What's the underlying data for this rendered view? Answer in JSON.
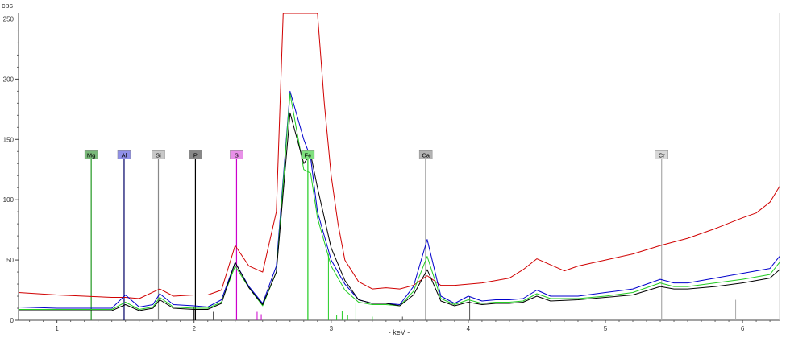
{
  "chart_data": {
    "type": "line",
    "ylabel": "cps",
    "xlabel": "- keV -",
    "xlim": [
      0.72,
      6.27
    ],
    "ylim": [
      0,
      255
    ],
    "x_ticks": [
      1,
      2,
      3,
      4,
      5,
      6
    ],
    "y_ticks": [
      0,
      50,
      100,
      150,
      200,
      250
    ],
    "grid": false,
    "series": [
      {
        "color": "#d00000",
        "points": [
          [
            0.72,
            23
          ],
          [
            1.0,
            21
          ],
          [
            1.2,
            20
          ],
          [
            1.4,
            19
          ],
          [
            1.5,
            19
          ],
          [
            1.6,
            18
          ],
          [
            1.75,
            26
          ],
          [
            1.85,
            20
          ],
          [
            2.0,
            21
          ],
          [
            2.1,
            21
          ],
          [
            2.2,
            25
          ],
          [
            2.3,
            62
          ],
          [
            2.4,
            45
          ],
          [
            2.5,
            40
          ],
          [
            2.6,
            90
          ],
          [
            2.65,
            255
          ],
          [
            2.9,
            255
          ],
          [
            2.95,
            180
          ],
          [
            3.0,
            120
          ],
          [
            3.05,
            80
          ],
          [
            3.1,
            50
          ],
          [
            3.2,
            32
          ],
          [
            3.3,
            26
          ],
          [
            3.4,
            27
          ],
          [
            3.5,
            26
          ],
          [
            3.6,
            29
          ],
          [
            3.7,
            37
          ],
          [
            3.8,
            29
          ],
          [
            3.9,
            29
          ],
          [
            4.0,
            30
          ],
          [
            4.1,
            31
          ],
          [
            4.2,
            33
          ],
          [
            4.3,
            35
          ],
          [
            4.4,
            42
          ],
          [
            4.5,
            51
          ],
          [
            4.6,
            46
          ],
          [
            4.7,
            41
          ],
          [
            4.8,
            45
          ],
          [
            5.0,
            50
          ],
          [
            5.2,
            55
          ],
          [
            5.4,
            62
          ],
          [
            5.6,
            68
          ],
          [
            5.8,
            76
          ],
          [
            6.0,
            85
          ],
          [
            6.1,
            89
          ],
          [
            6.2,
            98
          ],
          [
            6.27,
            111
          ]
        ]
      },
      {
        "color": "#0000cc",
        "points": [
          [
            0.72,
            11
          ],
          [
            1.0,
            10
          ],
          [
            1.2,
            10
          ],
          [
            1.4,
            10
          ],
          [
            1.5,
            21
          ],
          [
            1.6,
            11
          ],
          [
            1.7,
            13
          ],
          [
            1.75,
            22
          ],
          [
            1.85,
            13
          ],
          [
            2.0,
            12
          ],
          [
            2.1,
            11
          ],
          [
            2.2,
            17
          ],
          [
            2.3,
            48
          ],
          [
            2.4,
            28
          ],
          [
            2.5,
            14
          ],
          [
            2.6,
            45
          ],
          [
            2.7,
            190
          ],
          [
            2.8,
            150
          ],
          [
            2.85,
            135
          ],
          [
            2.9,
            90
          ],
          [
            3.0,
            50
          ],
          [
            3.1,
            30
          ],
          [
            3.2,
            17
          ],
          [
            3.3,
            14
          ],
          [
            3.4,
            14
          ],
          [
            3.5,
            13
          ],
          [
            3.6,
            28
          ],
          [
            3.7,
            67
          ],
          [
            3.8,
            20
          ],
          [
            3.9,
            14
          ],
          [
            4.0,
            20
          ],
          [
            4.1,
            16
          ],
          [
            4.2,
            17
          ],
          [
            4.3,
            17
          ],
          [
            4.4,
            18
          ],
          [
            4.5,
            25
          ],
          [
            4.6,
            20
          ],
          [
            4.8,
            20
          ],
          [
            5.0,
            23
          ],
          [
            5.2,
            26
          ],
          [
            5.4,
            34
          ],
          [
            5.5,
            31
          ],
          [
            5.6,
            31
          ],
          [
            5.8,
            35
          ],
          [
            6.0,
            39
          ],
          [
            6.2,
            43
          ],
          [
            6.27,
            53
          ]
        ]
      },
      {
        "color": "#22cc22",
        "points": [
          [
            0.72,
            9
          ],
          [
            1.0,
            9
          ],
          [
            1.2,
            9
          ],
          [
            1.4,
            9
          ],
          [
            1.5,
            15
          ],
          [
            1.6,
            9
          ],
          [
            1.7,
            11
          ],
          [
            1.75,
            19
          ],
          [
            1.85,
            11
          ],
          [
            2.0,
            10
          ],
          [
            2.1,
            10
          ],
          [
            2.2,
            15
          ],
          [
            2.3,
            45
          ],
          [
            2.4,
            27
          ],
          [
            2.5,
            12
          ],
          [
            2.6,
            40
          ],
          [
            2.7,
            188
          ],
          [
            2.8,
            125
          ],
          [
            2.85,
            122
          ],
          [
            2.9,
            85
          ],
          [
            3.0,
            45
          ],
          [
            3.1,
            25
          ],
          [
            3.2,
            15
          ],
          [
            3.3,
            13
          ],
          [
            3.4,
            13
          ],
          [
            3.5,
            12
          ],
          [
            3.6,
            24
          ],
          [
            3.7,
            53
          ],
          [
            3.8,
            18
          ],
          [
            3.9,
            13
          ],
          [
            4.0,
            17
          ],
          [
            4.1,
            14
          ],
          [
            4.2,
            15
          ],
          [
            4.3,
            15
          ],
          [
            4.4,
            16
          ],
          [
            4.5,
            22
          ],
          [
            4.6,
            18
          ],
          [
            4.8,
            18
          ],
          [
            5.0,
            20
          ],
          [
            5.2,
            23
          ],
          [
            5.4,
            31
          ],
          [
            5.5,
            28
          ],
          [
            5.6,
            28
          ],
          [
            5.8,
            31
          ],
          [
            6.0,
            34
          ],
          [
            6.2,
            38
          ],
          [
            6.27,
            48
          ]
        ]
      },
      {
        "color": "#000000",
        "points": [
          [
            0.72,
            8
          ],
          [
            1.0,
            8
          ],
          [
            1.2,
            8
          ],
          [
            1.4,
            8
          ],
          [
            1.5,
            13
          ],
          [
            1.6,
            8
          ],
          [
            1.7,
            10
          ],
          [
            1.75,
            17
          ],
          [
            1.85,
            10
          ],
          [
            2.0,
            9
          ],
          [
            2.1,
            9
          ],
          [
            2.2,
            14
          ],
          [
            2.3,
            48
          ],
          [
            2.4,
            27
          ],
          [
            2.5,
            13
          ],
          [
            2.6,
            40
          ],
          [
            2.7,
            172
          ],
          [
            2.8,
            130
          ],
          [
            2.85,
            138
          ],
          [
            2.9,
            110
          ],
          [
            3.0,
            60
          ],
          [
            3.1,
            33
          ],
          [
            3.2,
            17
          ],
          [
            3.3,
            14
          ],
          [
            3.4,
            14
          ],
          [
            3.5,
            12
          ],
          [
            3.6,
            21
          ],
          [
            3.7,
            42
          ],
          [
            3.8,
            16
          ],
          [
            3.9,
            12
          ],
          [
            4.0,
            15
          ],
          [
            4.1,
            13
          ],
          [
            4.2,
            14
          ],
          [
            4.3,
            14
          ],
          [
            4.4,
            15
          ],
          [
            4.5,
            20
          ],
          [
            4.6,
            16
          ],
          [
            4.8,
            17
          ],
          [
            5.0,
            19
          ],
          [
            5.2,
            21
          ],
          [
            5.4,
            28
          ],
          [
            5.5,
            26
          ],
          [
            5.6,
            26
          ],
          [
            5.8,
            28
          ],
          [
            6.0,
            31
          ],
          [
            6.2,
            35
          ],
          [
            6.27,
            42
          ]
        ]
      }
    ],
    "element_markers": [
      {
        "label": "Mg",
        "kev": 1.25,
        "color": "#229922",
        "label_bg": "#7ab87a"
      },
      {
        "label": "Al",
        "kev": 1.49,
        "color": "#000066",
        "label_bg": "#9090e8"
      },
      {
        "label": "Si",
        "kev": 1.74,
        "color": "#888888",
        "label_bg": "#c8c8c8"
      },
      {
        "label": "P",
        "kev": 2.01,
        "color": "#000000",
        "label_bg": "#888888"
      },
      {
        "label": "S",
        "kev": 2.31,
        "color": "#cc00cc",
        "label_bg": "#e890e8"
      },
      {
        "label": "Fe",
        "kev": 2.83,
        "color": "#22cc22",
        "label_bg": "#7ee07e"
      },
      {
        "label": "Ca",
        "kev": 3.69,
        "color": "#555555",
        "label_bg": "#b4b4b4"
      },
      {
        "label": "Cr",
        "kev": 5.41,
        "color": "#aaaaaa",
        "label_bg": "#d8d8d8"
      }
    ],
    "reference_lines": [
      {
        "kev": 2.0,
        "height": 11,
        "color": "#000000"
      },
      {
        "kev": 2.14,
        "height": 7,
        "color": "#555555"
      },
      {
        "kev": 2.46,
        "height": 7,
        "color": "#cc00cc"
      },
      {
        "kev": 2.49,
        "height": 5,
        "color": "#cc00cc"
      },
      {
        "kev": 2.98,
        "height": 55,
        "color": "#22cc22"
      },
      {
        "kev": 3.04,
        "height": 4,
        "color": "#22cc22"
      },
      {
        "kev": 3.08,
        "height": 8,
        "color": "#22cc22"
      },
      {
        "kev": 3.12,
        "height": 4,
        "color": "#22cc22"
      },
      {
        "kev": 3.18,
        "height": 14,
        "color": "#22cc22"
      },
      {
        "kev": 3.3,
        "height": 3,
        "color": "#22cc22"
      },
      {
        "kev": 3.52,
        "height": 3,
        "color": "#555555"
      },
      {
        "kev": 4.01,
        "height": 20,
        "color": "#555555"
      },
      {
        "kev": 5.95,
        "height": 17,
        "color": "#aaaaaa"
      }
    ]
  }
}
